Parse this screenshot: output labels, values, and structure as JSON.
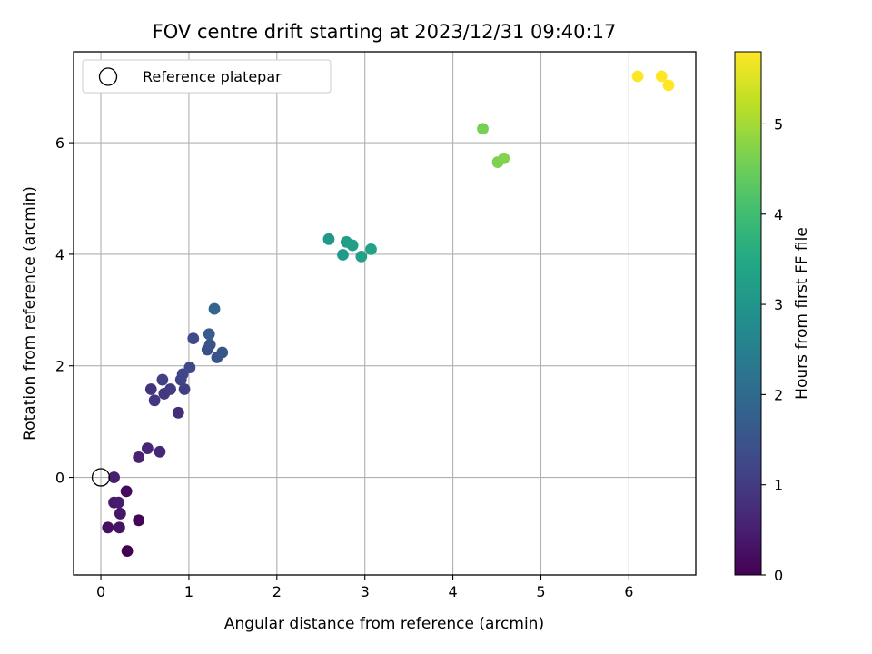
{
  "chart_data": {
    "type": "scatter",
    "title": "FOV centre drift starting at 2023/12/31 09:40:17",
    "xlabel": "Angular distance from reference (arcmin)",
    "ylabel": "Rotation from reference (arcmin)",
    "xlim": [
      -0.31,
      6.76
    ],
    "ylim": [
      -1.75,
      7.63
    ],
    "xticks": [
      0,
      1,
      2,
      3,
      4,
      5,
      6
    ],
    "yticks": [
      0,
      2,
      4,
      6
    ],
    "grid": true,
    "legend": {
      "position": "upper-left",
      "entries": [
        "Reference platepar"
      ]
    },
    "reference_point": {
      "x": 0,
      "y": 0,
      "marker": "open-circle"
    },
    "colorbar": {
      "label": "Hours from first FF file",
      "range": [
        0,
        5.8
      ],
      "ticks": [
        0,
        1,
        2,
        3,
        4,
        5
      ],
      "colormap": "viridis"
    },
    "points": [
      {
        "x": 0.3,
        "y": -1.32,
        "c": 0.0
      },
      {
        "x": 0.43,
        "y": -0.77,
        "c": 0.05
      },
      {
        "x": 0.29,
        "y": -0.25,
        "c": 0.15
      },
      {
        "x": 0.08,
        "y": -0.9,
        "c": 0.25
      },
      {
        "x": 0.21,
        "y": -0.9,
        "c": 0.3
      },
      {
        "x": 0.22,
        "y": -0.65,
        "c": 0.35
      },
      {
        "x": 0.15,
        "y": -0.45,
        "c": 0.4
      },
      {
        "x": 0.2,
        "y": -0.45,
        "c": 0.45
      },
      {
        "x": 0.15,
        "y": 0.0,
        "c": 0.5
      },
      {
        "x": 0.43,
        "y": 0.36,
        "c": 0.55
      },
      {
        "x": 0.53,
        "y": 0.52,
        "c": 0.6
      },
      {
        "x": 0.67,
        "y": 0.46,
        "c": 0.65
      },
      {
        "x": 0.88,
        "y": 1.16,
        "c": 0.75
      },
      {
        "x": 0.57,
        "y": 1.58,
        "c": 0.85
      },
      {
        "x": 0.61,
        "y": 1.38,
        "c": 0.9
      },
      {
        "x": 0.72,
        "y": 1.5,
        "c": 0.95
      },
      {
        "x": 0.79,
        "y": 1.58,
        "c": 1.0
      },
      {
        "x": 0.95,
        "y": 1.58,
        "c": 1.05
      },
      {
        "x": 0.7,
        "y": 1.75,
        "c": 1.1
      },
      {
        "x": 0.91,
        "y": 1.75,
        "c": 1.15
      },
      {
        "x": 0.93,
        "y": 1.85,
        "c": 1.2
      },
      {
        "x": 1.01,
        "y": 1.97,
        "c": 1.25
      },
      {
        "x": 1.05,
        "y": 2.49,
        "c": 1.3
      },
      {
        "x": 1.21,
        "y": 2.29,
        "c": 1.4
      },
      {
        "x": 1.24,
        "y": 2.38,
        "c": 1.45
      },
      {
        "x": 1.32,
        "y": 2.15,
        "c": 1.5
      },
      {
        "x": 1.38,
        "y": 2.24,
        "c": 1.55
      },
      {
        "x": 1.23,
        "y": 2.57,
        "c": 1.7
      },
      {
        "x": 1.29,
        "y": 3.02,
        "c": 1.85
      },
      {
        "x": 2.59,
        "y": 4.27,
        "c": 3.1
      },
      {
        "x": 2.75,
        "y": 3.99,
        "c": 3.15
      },
      {
        "x": 2.79,
        "y": 4.22,
        "c": 3.2
      },
      {
        "x": 2.86,
        "y": 4.16,
        "c": 3.25
      },
      {
        "x": 2.96,
        "y": 3.96,
        "c": 3.3
      },
      {
        "x": 3.07,
        "y": 4.09,
        "c": 3.35
      },
      {
        "x": 4.34,
        "y": 6.25,
        "c": 4.6
      },
      {
        "x": 4.51,
        "y": 5.65,
        "c": 4.65
      },
      {
        "x": 4.58,
        "y": 5.72,
        "c": 4.7
      },
      {
        "x": 6.1,
        "y": 7.19,
        "c": 5.8
      },
      {
        "x": 6.37,
        "y": 7.19,
        "c": 5.8
      },
      {
        "x": 6.45,
        "y": 7.03,
        "c": 5.8
      }
    ]
  }
}
